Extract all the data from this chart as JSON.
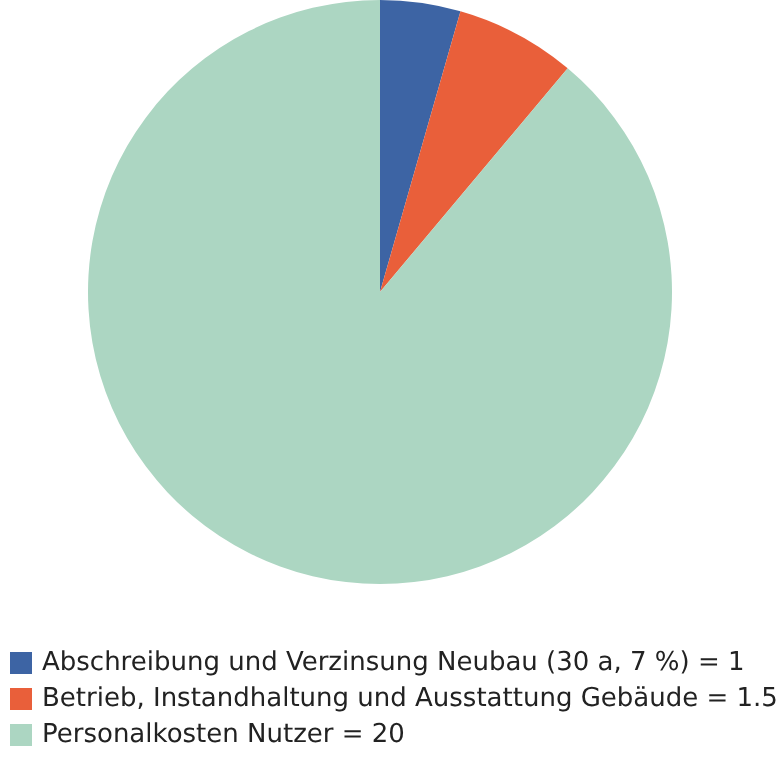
{
  "chart_data": {
    "type": "pie",
    "categories": [
      "Abschreibung und Verzinsung Neubau (30 a, 7 %) = 1",
      "Betrieb, Instandhaltung und Ausstattung Gebäude = 1.5",
      "Personalkosten Nutzer = 20"
    ],
    "values": [
      1,
      1.5,
      20
    ],
    "colors": [
      "#3d64a4",
      "#e95f3a",
      "#acd6c2"
    ],
    "legend": "bottom left"
  }
}
